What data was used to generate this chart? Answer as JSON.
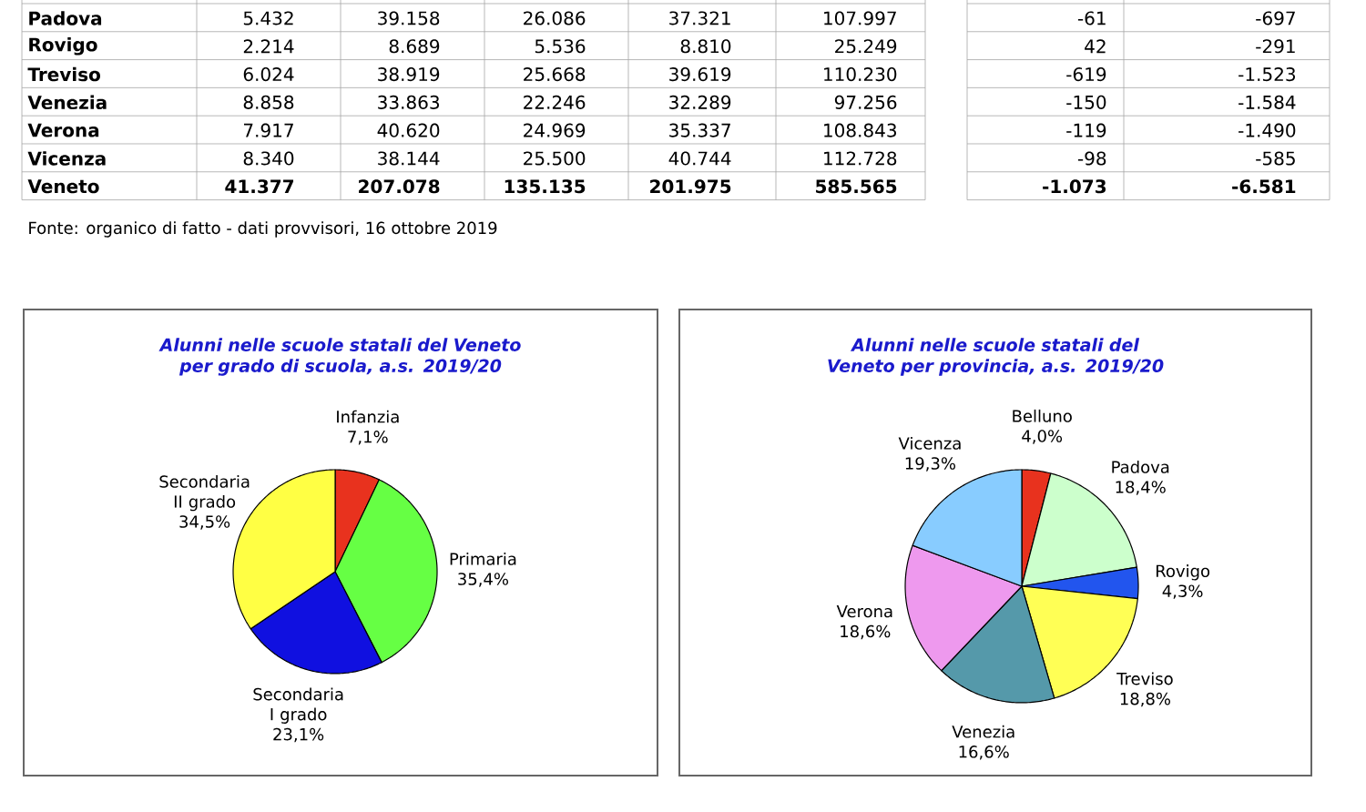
{
  "chart_data": [
    {
      "type": "other",
      "annotations": [
        "Padova",
        "5.432",
        "39.158",
        "26.086",
        "37.321",
        "107.997",
        "-61",
        "-697",
        "Rovigo",
        "2.214",
        "8.689",
        "5.536",
        "8.810",
        "25.249",
        "42",
        "-291",
        "Treviso",
        "6.024",
        "38.919",
        "25.668",
        "39.619",
        "110.230",
        "-619",
        "-1.523",
        "Venezia",
        "8.858",
        "33.863",
        "22.246",
        "32.289",
        "97.256",
        "-150",
        "-1.584",
        "Verona",
        "7.917",
        "40.620",
        "24.969",
        "35.337",
        "108.843",
        "-119",
        "-1.490",
        "Vicenza",
        "8.340",
        "38.144",
        "25.500",
        "40.744",
        "112.728",
        "-98",
        "-585",
        "Veneto",
        "41.377",
        "207.078",
        "135.135",
        "201.975",
        "585.565",
        "-1.073",
        "-6.581",
        "Fonte: organico di fatto - dati provvisori, 16 ottobre 2019"
      ]
    },
    {
      "type": "pie",
      "title": "Alunni nelle scuole statali del Veneto per grado di scuola, a.s. 2019/20",
      "categories": [
        "Infanzia",
        "Primaria",
        "Secondaria I grado",
        "Secondaria II grado"
      ],
      "values": [
        7.1,
        35.4,
        23.1,
        34.5
      ],
      "value_labels": [
        "7,1%",
        "35,4%",
        "23,1%",
        "34,5%"
      ],
      "colors": [
        "#e8321e",
        "#66ff44",
        "#1010e0",
        "#ffff44"
      ]
    },
    {
      "type": "pie",
      "title": "Alunni nelle scuole statali del Veneto per provincia, a.s. 2019/20",
      "categories": [
        "Belluno",
        "Padova",
        "Rovigo",
        "Treviso",
        "Venezia",
        "Verona",
        "Vicenza"
      ],
      "values": [
        4.0,
        18.4,
        4.3,
        18.8,
        16.6,
        18.6,
        19.3
      ],
      "value_labels": [
        "4,0%",
        "18,4%",
        "4,3%",
        "18,8%",
        "16,6%",
        "18,6%",
        "19,3%"
      ],
      "colors": [
        "#e8321e",
        "#ccffcc",
        "#2255ee",
        "#ffff55",
        "#5599aa",
        "#ee99ee",
        "#88ccff"
      ]
    }
  ]
}
